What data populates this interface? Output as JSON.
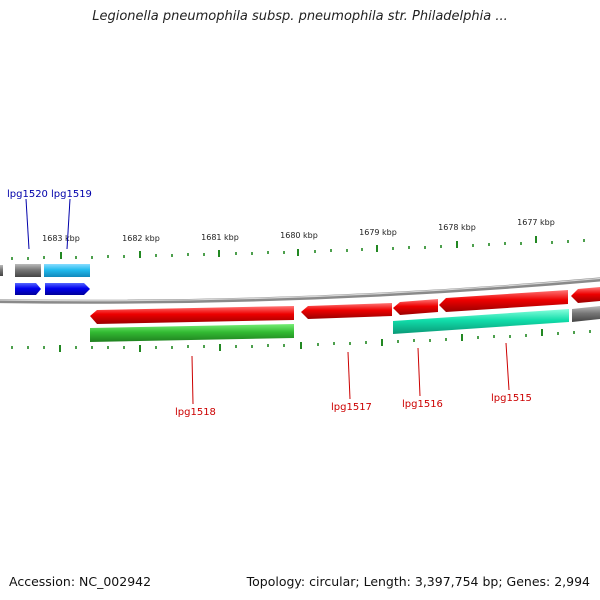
{
  "title": "Legionella pneumophila subsp. pneumophila str. Philadelphia ...",
  "footer": {
    "accession": "Accession: NC_002942",
    "topology": "Topology: circular; Length: 3,397,754 bp; Genes: 2,994"
  },
  "colors": {
    "gene_red": "#ee0000",
    "gene_green": "#33bb33",
    "gene_teal": "#11ddaa",
    "gene_cyan": "#22bbee",
    "gene_blue": "#0000ee",
    "gene_gray": "#777777",
    "tick_green": "#228822",
    "backbone": "#888888",
    "label_blue": "#0000aa",
    "label_red": "#cc0000"
  },
  "ticks": [
    "1683 kbp",
    "1682 kbp",
    "1681 kbp",
    "1680 kbp",
    "1679 kbp",
    "1678 kbp",
    "1677 kbp"
  ],
  "gene_labels": {
    "lpg1520": "lpg1520",
    "lpg1519": "lpg1519",
    "lpg1518": "lpg1518",
    "lpg1517": "lpg1517",
    "lpg1516": "lpg1516",
    "lpg1515": "lpg1515"
  }
}
